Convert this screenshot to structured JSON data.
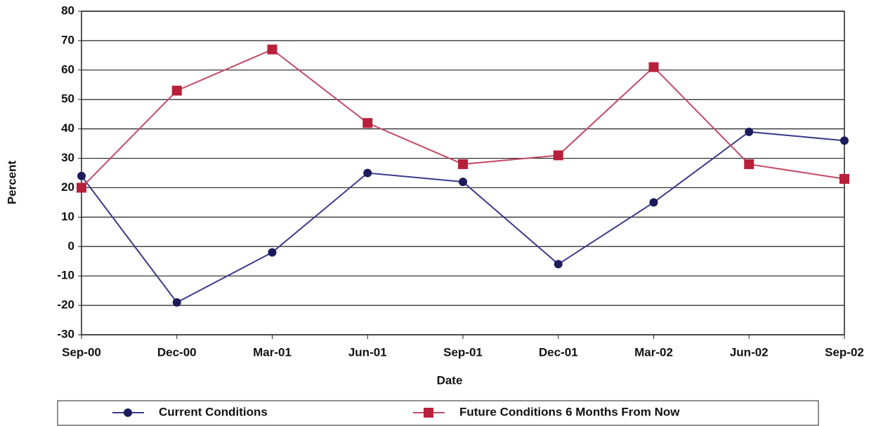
{
  "chart_data": {
    "type": "line",
    "x_label": "Date",
    "y_label": "Percent",
    "categories": [
      "Sep-00",
      "Dec-00",
      "Mar-01",
      "Jun-01",
      "Sep-01",
      "Dec-01",
      "Mar-02",
      "Jun-02",
      "Sep-02"
    ],
    "series": [
      {
        "name": "Current Conditions",
        "color": "#1c1c5c",
        "line_color": "#3a3a8c",
        "marker": "circle",
        "values": [
          24,
          -19,
          -2,
          25,
          22,
          -6,
          15,
          39,
          36
        ]
      },
      {
        "name": "Future Conditions 6 Months From Now",
        "color": "#b8203c",
        "line_color": "#c44a66",
        "marker": "square",
        "values": [
          20,
          53,
          67,
          42,
          28,
          31,
          61,
          28,
          23
        ]
      }
    ],
    "ylim": [
      -30,
      80
    ],
    "yticks": [
      -30,
      -20,
      -10,
      0,
      10,
      20,
      30,
      40,
      50,
      60,
      70,
      80
    ],
    "grid": true,
    "legend": "bottom"
  }
}
